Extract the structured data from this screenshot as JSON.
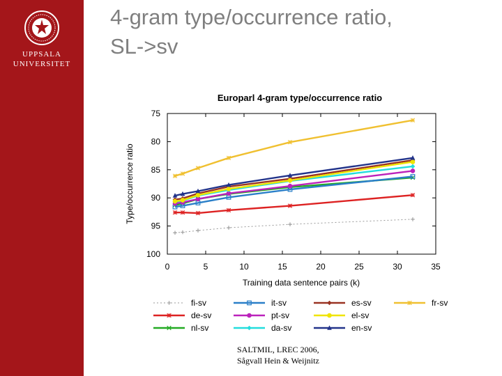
{
  "sidebar": {
    "logo_icon": "university-seal-icon",
    "brand_line1": "UPPSALA",
    "brand_line2": "UNIVERSITET",
    "color": "#a4161a"
  },
  "slide": {
    "title_line1": "4-gram type/occurrence ratio,",
    "title_line2": "SL->sv"
  },
  "footer": {
    "line1": "SALTMIL, LREC 2006,",
    "line2": "Sågvall Hein & Weijnitz"
  },
  "chart_data": {
    "type": "line",
    "title": "Europarl 4-gram type/occurrence ratio",
    "xlabel": "Training data sentence pairs (k)",
    "ylabel": "Type/occurrence ratio",
    "xlim": [
      0,
      35
    ],
    "ylim": [
      100,
      75
    ],
    "y_axis_reversed": true,
    "xticks": [
      0,
      5,
      10,
      15,
      20,
      25,
      30,
      35
    ],
    "yticks": [
      75,
      80,
      85,
      90,
      95,
      100
    ],
    "grid": false,
    "legend_position": "bottom",
    "x": [
      1,
      2,
      4,
      8,
      16,
      32
    ],
    "series": [
      {
        "name": "fi-sv",
        "color": "#999999",
        "marker": "plus",
        "dashed": true,
        "values": [
          96.2,
          96.1,
          95.8,
          95.3,
          94.7,
          93.8
        ]
      },
      {
        "name": "de-sv",
        "color": "#dd2222",
        "marker": "star",
        "dashed": false,
        "values": [
          92.6,
          92.6,
          92.7,
          92.2,
          91.4,
          89.5
        ]
      },
      {
        "name": "nl-sv",
        "color": "#22aa22",
        "marker": "x",
        "dashed": false,
        "values": [
          91.3,
          91.0,
          90.2,
          89.3,
          88.1,
          86.4
        ]
      },
      {
        "name": "it-sv",
        "color": "#2a7fc8",
        "marker": "square",
        "dashed": false,
        "values": [
          91.6,
          91.4,
          90.9,
          89.9,
          88.5,
          86.2
        ]
      },
      {
        "name": "pt-sv",
        "color": "#bb22bb",
        "marker": "circle",
        "dashed": false,
        "values": [
          91.0,
          90.8,
          90.2,
          89.2,
          87.9,
          85.2
        ]
      },
      {
        "name": "da-sv",
        "color": "#22dddd",
        "marker": "diamond",
        "dashed": false,
        "values": [
          90.7,
          90.5,
          89.6,
          88.6,
          87.0,
          84.4
        ]
      },
      {
        "name": "es-sv",
        "color": "#993322",
        "marker": "diamond",
        "dashed": false,
        "values": [
          90.3,
          90.1,
          89.2,
          88.0,
          86.6,
          83.3
        ]
      },
      {
        "name": "el-sv",
        "color": "#f0e400",
        "marker": "circle",
        "dashed": false,
        "values": [
          90.6,
          90.4,
          89.5,
          88.4,
          86.9,
          83.6
        ]
      },
      {
        "name": "en-sv",
        "color": "#22338a",
        "marker": "triangle",
        "dashed": false,
        "values": [
          89.6,
          89.3,
          88.8,
          87.7,
          86.0,
          82.9
        ]
      },
      {
        "name": "fr-sv",
        "color": "#f0c030",
        "marker": "star",
        "dashed": false,
        "values": [
          86.1,
          85.7,
          84.7,
          82.9,
          80.1,
          76.2
        ]
      }
    ]
  }
}
